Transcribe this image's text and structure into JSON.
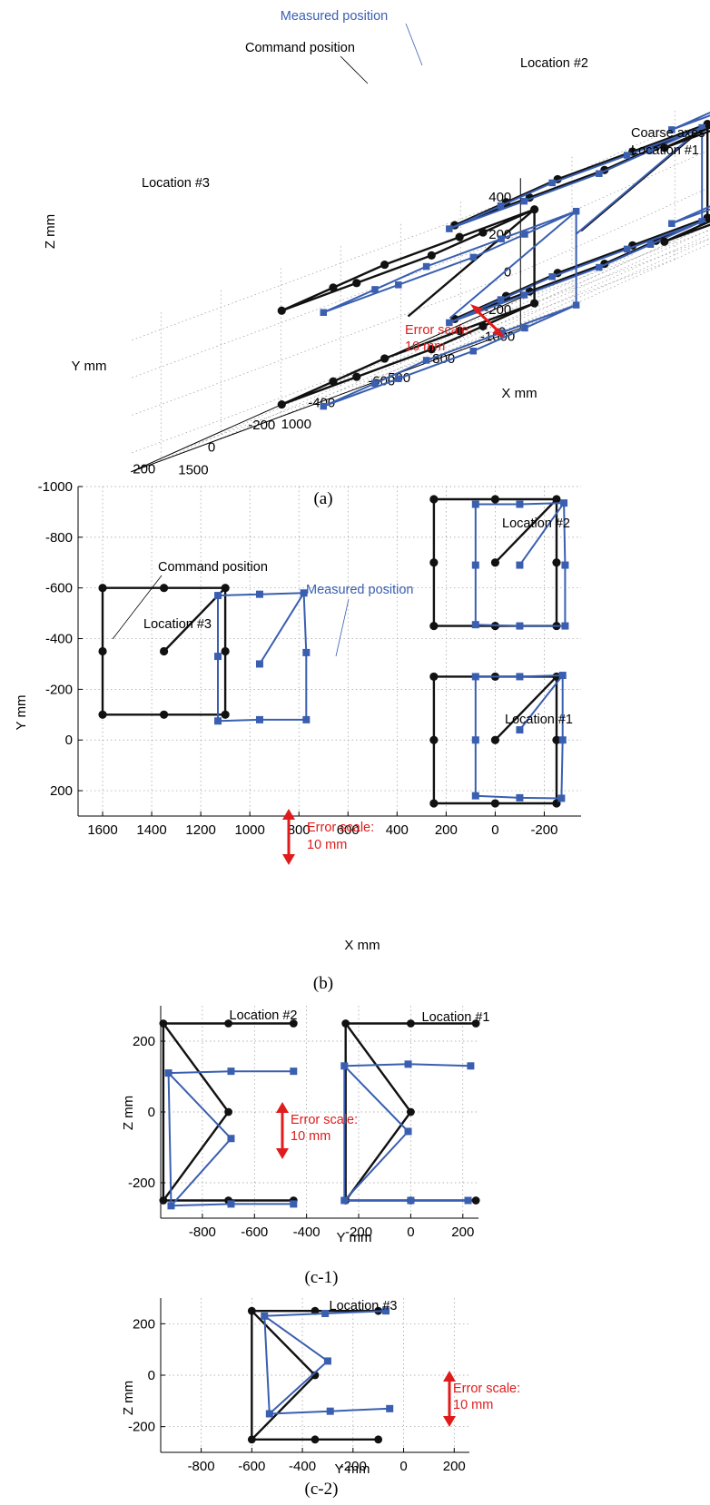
{
  "captions": [
    "(a)",
    "(b)",
    "(c-1)",
    "(c-2)"
  ],
  "chart_data": [
    {
      "id": "a",
      "type": "line",
      "projection": "3d",
      "xlabel": "X mm",
      "ylabel": "Y mm",
      "zlabel": "Z mm",
      "x_ticks": [
        "0",
        "500",
        "1000",
        "1500"
      ],
      "y_ticks": [
        "-1000",
        "-800",
        "-600",
        "-400",
        "-200",
        "0",
        "200"
      ],
      "z_ticks": [
        "400",
        "200",
        "0",
        "-200"
      ],
      "annotations": {
        "command": "Command position",
        "measured": "Measured position",
        "loc1": [
          "Coarse axes",
          "Location #1"
        ],
        "loc2": "Location #2",
        "loc3": "Location #3",
        "error_scale": [
          "Error scale:",
          "10 mm"
        ]
      },
      "series": [
        {
          "name": "Command position",
          "color": "#111111",
          "marker": "circle"
        },
        {
          "name": "Measured position",
          "color": "#3a5fb0",
          "marker": "square"
        }
      ],
      "locations": [
        {
          "label": "Location #1",
          "x_center": 0,
          "y_center": 0,
          "x_half": 250,
          "y_half": 250,
          "z_half": 250
        },
        {
          "label": "Location #2",
          "x_center": 0,
          "y_center": -700,
          "x_half": 250,
          "y_half": 250,
          "z_half": 250
        },
        {
          "label": "Location #3",
          "x_center": 1350,
          "y_center": -350,
          "x_half": 250,
          "y_half": 250,
          "z_half": 250
        }
      ]
    },
    {
      "id": "b",
      "type": "line",
      "xlabel": "X mm",
      "ylabel": "Y mm",
      "xlim": [
        1700,
        -350
      ],
      "ylim": [
        -1000,
        300
      ],
      "x_ticks": [
        "1600",
        "1400",
        "1200",
        "1000",
        "800",
        "600",
        "400",
        "200",
        "0",
        "-200"
      ],
      "y_ticks": [
        "-1000",
        "-800",
        "-600",
        "-400",
        "-200",
        "0",
        "200"
      ],
      "annotations": {
        "command": "Command position",
        "measured": "Measured position",
        "loc1": "Location #1",
        "loc2": "Location #2",
        "loc3": "Location #3",
        "error_scale": [
          "Error scale:",
          "10 mm"
        ]
      },
      "groups": [
        {
          "label": "Location #3",
          "command": [
            [
              1600,
              -600
            ],
            [
              1350,
              -600
            ],
            [
              1100,
              -600
            ],
            [
              1100,
              -350
            ],
            [
              1100,
              -100
            ],
            [
              1350,
              -100
            ],
            [
              1600,
              -100
            ],
            [
              1600,
              -350
            ],
            [
              1600,
              -600
            ]
          ],
          "command_center": [
            1350,
            -350
          ],
          "measured": [
            [
              1130,
              -570
            ],
            [
              960,
              -575
            ],
            [
              780,
              -580
            ],
            [
              770,
              -345
            ],
            [
              770,
              -80
            ],
            [
              960,
              -80
            ],
            [
              1130,
              -75
            ],
            [
              1130,
              -330
            ],
            [
              1130,
              -570
            ]
          ],
          "measured_center": [
            960,
            -300
          ]
        },
        {
          "label": "Location #2",
          "command": [
            [
              250,
              -950
            ],
            [
              0,
              -950
            ],
            [
              -250,
              -950
            ],
            [
              -250,
              -700
            ],
            [
              -250,
              -450
            ],
            [
              0,
              -450
            ],
            [
              250,
              -450
            ],
            [
              250,
              -700
            ],
            [
              250,
              -950
            ]
          ],
          "command_center": [
            0,
            -700
          ],
          "measured": [
            [
              80,
              -930
            ],
            [
              -100,
              -930
            ],
            [
              -280,
              -935
            ],
            [
              -285,
              -690
            ],
            [
              -285,
              -450
            ],
            [
              -100,
              -450
            ],
            [
              80,
              -455
            ],
            [
              80,
              -690
            ],
            [
              80,
              -930
            ]
          ],
          "measured_center": [
            -100,
            -690
          ]
        },
        {
          "label": "Location #1",
          "command": [
            [
              250,
              -250
            ],
            [
              0,
              -250
            ],
            [
              -250,
              -250
            ],
            [
              -250,
              0
            ],
            [
              -250,
              250
            ],
            [
              0,
              250
            ],
            [
              250,
              250
            ],
            [
              250,
              0
            ],
            [
              250,
              -250
            ]
          ],
          "command_center": [
            0,
            0
          ],
          "measured": [
            [
              80,
              -250
            ],
            [
              -100,
              -250
            ],
            [
              -275,
              -255
            ],
            [
              -275,
              0
            ],
            [
              -270,
              230
            ],
            [
              -100,
              228
            ],
            [
              80,
              220
            ],
            [
              80,
              0
            ],
            [
              80,
              -250
            ]
          ],
          "measured_center": [
            -100,
            -40
          ]
        }
      ]
    },
    {
      "id": "c-1",
      "type": "line",
      "xlabel": "Y mm",
      "ylabel": "Z mm",
      "x_ticks": [
        "-800",
        "-600",
        "-400",
        "-200",
        "0",
        "200"
      ],
      "y_ticks": [
        "200",
        "0",
        "-200"
      ],
      "annotations": {
        "loc1": "Location #1",
        "loc2": "Location #2",
        "error_scale": [
          "Error scale:",
          "10 mm"
        ]
      },
      "groups": [
        {
          "label": "Location #2",
          "command_top": [
            [
              -950,
              250
            ],
            [
              -700,
              250
            ],
            [
              -450,
              250
            ]
          ],
          "command_bottom": [
            [
              -950,
              -250
            ],
            [
              -700,
              -250
            ],
            [
              -450,
              -250
            ]
          ],
          "command_center": [
            -700,
            0
          ],
          "measured_top": [
            [
              -930,
              110
            ],
            [
              -690,
              115
            ],
            [
              -450,
              115
            ]
          ],
          "measured_bottom": [
            [
              -920,
              -265
            ],
            [
              -690,
              -260
            ],
            [
              -450,
              -260
            ]
          ],
          "measured_center": [
            -690,
            -75
          ]
        },
        {
          "label": "Location #1",
          "command_top": [
            [
              -250,
              250
            ],
            [
              0,
              250
            ],
            [
              250,
              250
            ]
          ],
          "command_bottom": [
            [
              -250,
              -250
            ],
            [
              0,
              -250
            ],
            [
              250,
              -250
            ]
          ],
          "command_center": [
            0,
            0
          ],
          "measured_top": [
            [
              -255,
              130
            ],
            [
              -10,
              135
            ],
            [
              230,
              130
            ]
          ],
          "measured_bottom": [
            [
              -255,
              -250
            ],
            [
              0,
              -250
            ],
            [
              220,
              -250
            ]
          ],
          "measured_center": [
            -10,
            -55
          ]
        }
      ]
    },
    {
      "id": "c-2",
      "type": "line",
      "xlabel": "Y mm",
      "ylabel": "Z mm",
      "x_ticks": [
        "-800",
        "-600",
        "-400",
        "-200",
        "0",
        "200"
      ],
      "y_ticks": [
        "200",
        "0",
        "-200"
      ],
      "annotations": {
        "loc3": "Location #3",
        "error_scale": [
          "Error scale:",
          "10 mm"
        ]
      },
      "groups": [
        {
          "label": "Location #3",
          "command_top": [
            [
              -600,
              250
            ],
            [
              -350,
              250
            ],
            [
              -100,
              250
            ]
          ],
          "command_bottom": [
            [
              -600,
              -250
            ],
            [
              -350,
              -250
            ],
            [
              -100,
              -250
            ]
          ],
          "command_center": [
            -350,
            0
          ],
          "measured_top": [
            [
              -550,
              230
            ],
            [
              -310,
              240
            ],
            [
              -70,
              250
            ]
          ],
          "measured_bottom": [
            [
              -530,
              -150
            ],
            [
              -290,
              -140
            ],
            [
              -55,
              -130
            ]
          ],
          "measured_center": [
            -300,
            55
          ]
        }
      ]
    }
  ]
}
